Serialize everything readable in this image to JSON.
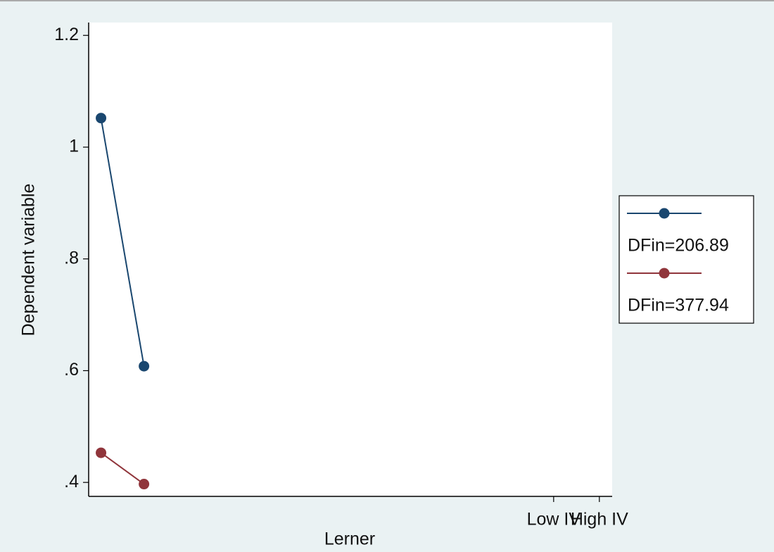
{
  "chart_data": {
    "type": "line",
    "x_label": "Lerner",
    "y_label": "Dependent variable",
    "xlim": [
      -10.17,
      1.28
    ],
    "xticks": [
      {
        "value": 0,
        "label": "Low IV"
      },
      {
        "value": 1,
        "label": "High IV"
      }
    ],
    "ylim": [
      0.375,
      1.223
    ],
    "yticks": [
      {
        "value": 0.4,
        "label": ".4"
      },
      {
        "value": 0.6,
        "label": ".6"
      },
      {
        "value": 0.8,
        "label": ".8"
      },
      {
        "value": 1,
        "label": "1"
      },
      {
        "value": 1.2,
        "label": "1.2"
      }
    ],
    "grid": false,
    "legend": "right",
    "series": [
      {
        "name": "DFin=206.89",
        "color": "#1a476f",
        "x": [
          -9.9,
          -8.96
        ],
        "values": [
          1.052,
          0.608
        ]
      },
      {
        "name": "DFin=377.94",
        "color": "#90353b",
        "x": [
          -9.9,
          -8.96
        ],
        "values": [
          0.453,
          0.397
        ]
      }
    ]
  }
}
